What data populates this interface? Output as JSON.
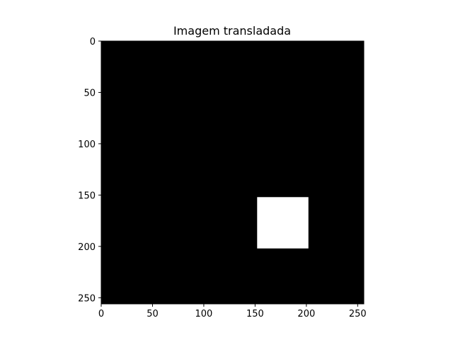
{
  "chart_data": {
    "type": "heatmap",
    "title": "Imagem transladada",
    "xlabel": "",
    "ylabel": "",
    "image_size": [
      256,
      256
    ],
    "xlim": [
      0,
      256
    ],
    "ylim": [
      256,
      0
    ],
    "y_axis_inverted": true,
    "grid": false,
    "legend": "none",
    "colormap": "gray",
    "background_value": 0,
    "background_color": "#000000",
    "foreground_color": "#ffffff",
    "regions": [
      {
        "value": 1,
        "x_range": [
          152,
          202
        ],
        "y_range": [
          152,
          202
        ]
      }
    ],
    "xticks": [
      0,
      50,
      100,
      150,
      200,
      250
    ],
    "yticks": [
      0,
      50,
      100,
      150,
      200,
      250
    ],
    "xtick_labels": [
      "0",
      "50",
      "100",
      "150",
      "200",
      "250"
    ],
    "ytick_labels": [
      "0",
      "50",
      "100",
      "150",
      "200",
      "250"
    ]
  }
}
